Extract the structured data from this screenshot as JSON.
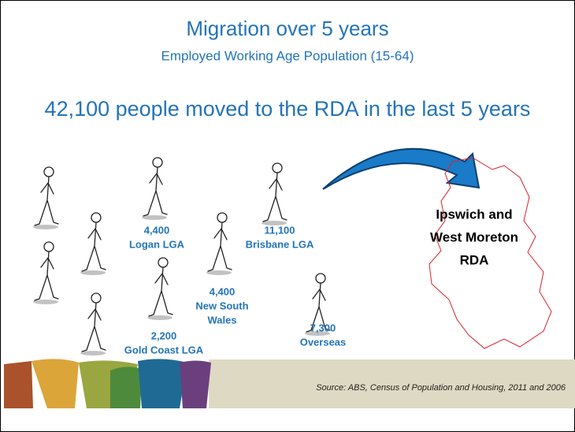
{
  "title": "Migration over 5 years",
  "subtitle": "Employed Working Age Population (15-64)",
  "headline": "42,100 people moved to the RDA in the last 5 years",
  "groups": [
    {
      "value": "4,400",
      "label": [
        "Logan LGA"
      ]
    },
    {
      "value": "11,100",
      "label": [
        "Brisbane LGA"
      ]
    },
    {
      "value": "4,400",
      "label": [
        "New South",
        "Wales"
      ]
    },
    {
      "value": "2,200",
      "label": [
        "Gold Coast LGA"
      ]
    },
    {
      "value": "7,300",
      "label": [
        "Overseas"
      ]
    }
  ],
  "map_label": [
    "Ipswich and",
    "West Moreton",
    "RDA"
  ],
  "source": "Source: ABS, Census of Population and Housing, 2011 and 2006"
}
